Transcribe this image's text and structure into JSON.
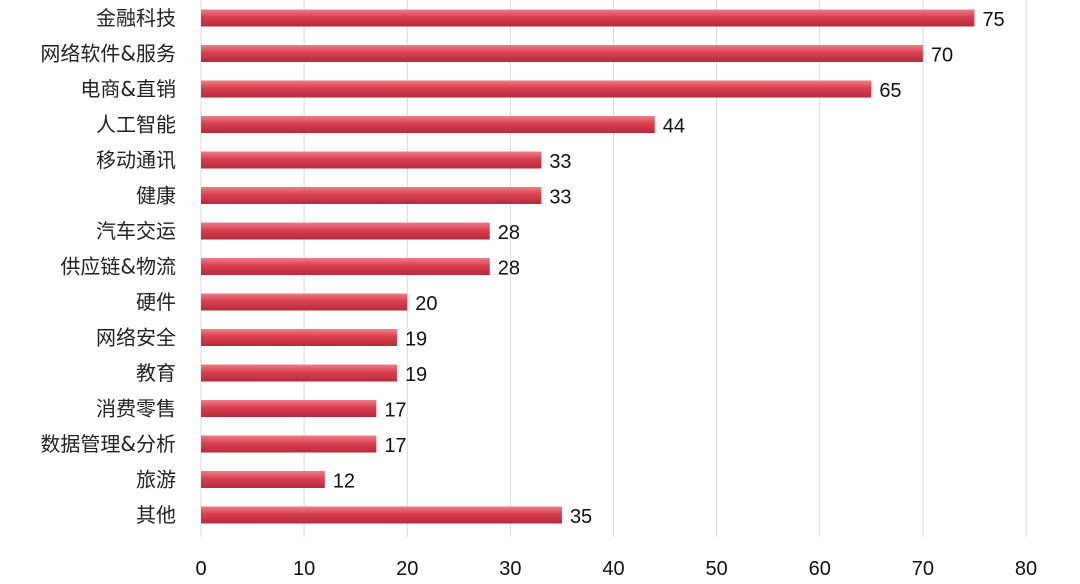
{
  "chart_data": {
    "type": "bar",
    "orientation": "horizontal",
    "categories": [
      "金融科技",
      "网络软件&服务",
      "电商&直销",
      "人工智能",
      "移动通讯",
      "健康",
      "汽车交运",
      "供应链&物流",
      "硬件",
      "网络安全",
      "教育",
      "消费零售",
      "数据管理&分析",
      "旅游",
      "其他"
    ],
    "values": [
      75,
      70,
      65,
      44,
      33,
      33,
      28,
      28,
      20,
      19,
      19,
      17,
      17,
      12,
      35
    ],
    "title": "",
    "xlabel": "",
    "ylabel": "",
    "xlim": [
      0,
      80
    ],
    "xticks": [
      0,
      10,
      20,
      30,
      40,
      50,
      60,
      70,
      80
    ],
    "grid": "vertical",
    "legend": "none",
    "data_labels": true,
    "colors": {
      "bar": "#d9404f",
      "bar_light": "#ec7d87",
      "bar_dark": "#b52a3a",
      "grid": "#d9d9d9",
      "text": "#222222"
    }
  }
}
